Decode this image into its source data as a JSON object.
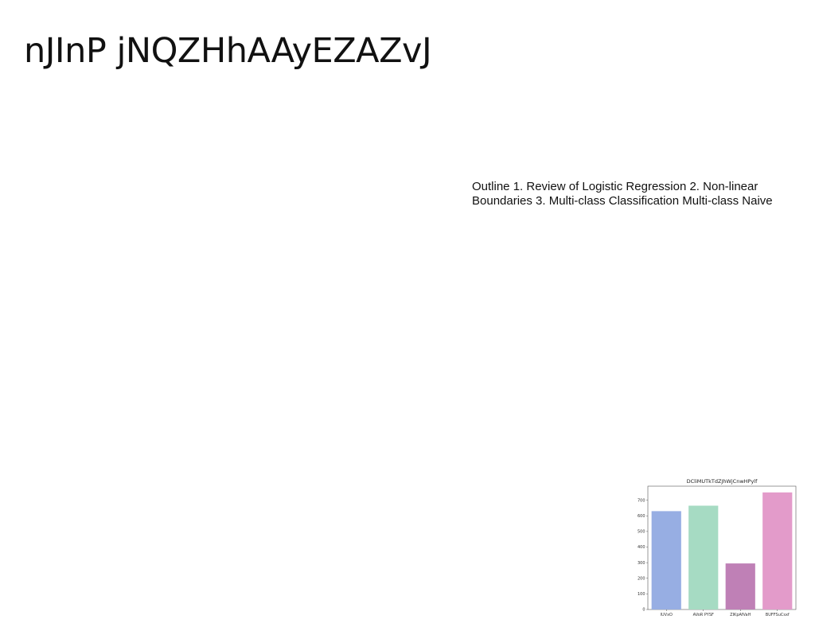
{
  "slide": {
    "title": "nJInP jNQZHhAAyEZAZvJ",
    "body_text": "Outline 1. Review of Logistic Regression 2. Non-linear Boundaries 3. Multi-class Classification Multi-class Naive"
  },
  "chart_data": {
    "type": "bar",
    "title": "DCliMUTkTdZJhWjCnwHPylf",
    "xlabel": "",
    "ylabel": "",
    "categories": [
      "IUVxO",
      "AVoR PYSF",
      "ZIKpAfVaH",
      "BUFFSuCsxf"
    ],
    "values": [
      630,
      665,
      295,
      750
    ],
    "colors": [
      "#97aee3",
      "#a6dbc3",
      "#bf80b6",
      "#e39bca"
    ],
    "ylim": [
      0,
      790
    ],
    "yticks": [
      0,
      100,
      200,
      300,
      400,
      500,
      600,
      700
    ],
    "grid": false,
    "legend": "none"
  }
}
